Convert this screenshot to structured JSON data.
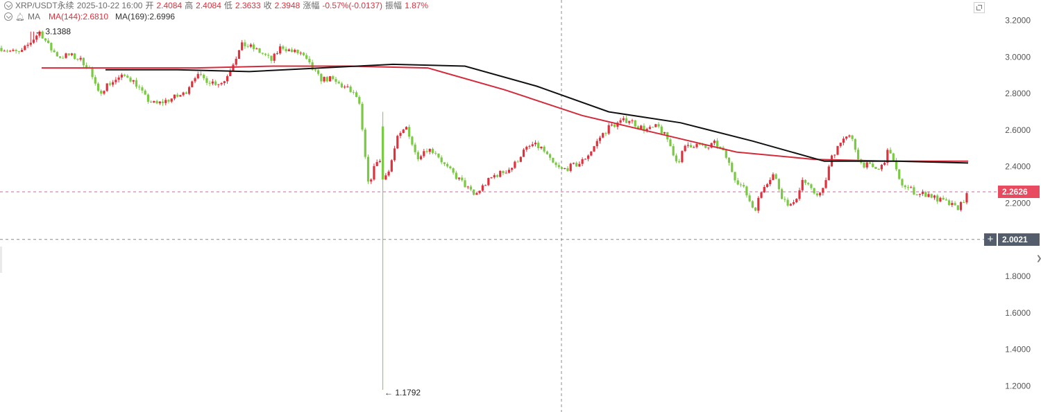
{
  "header": {
    "symbol": "XRP/USDT永续",
    "datetime": "2025-10-22 16:00",
    "open_label": "开",
    "open": "2.4084",
    "high_label": "高",
    "high": "2.4084",
    "low_label": "低",
    "low": "2.3633",
    "close_label": "收",
    "close": "2.3948",
    "change_label": "涨幅",
    "change": "-0.57%(-0.0137)",
    "amplitude_label": "振幅",
    "amplitude": "1.87%"
  },
  "indicators": {
    "name": "MA",
    "ma144": "MA(144):2.6810",
    "ma169": "MA(169):2.6996"
  },
  "price_tags": {
    "last_price": "2.2626",
    "crosshair_price": "2.0021",
    "plus": "+"
  },
  "chart_data": {
    "type": "candlestick",
    "title": "XRP/USDT永续",
    "ylim": [
      1.12,
      3.28
    ],
    "y_ticks": [
      "3.2000",
      "3.0000",
      "2.8000",
      "2.6000",
      "2.4000",
      "2.2000",
      "2.0000",
      "1.8000",
      "1.6000",
      "1.4000",
      "1.2000"
    ],
    "last_price": 2.2626,
    "crosshair_price": 2.0021,
    "annotations": [
      {
        "label": "3.1388",
        "value": 3.1388
      },
      {
        "label": "1.1792",
        "value": 1.1792
      }
    ],
    "price_path": [
      3.05,
      3.03,
      3.02,
      3.08,
      3.14,
      3.05,
      3.0,
      3.01,
      2.99,
      2.95,
      2.8,
      2.85,
      2.88,
      2.9,
      2.85,
      2.77,
      2.74,
      2.76,
      2.78,
      2.8,
      2.9,
      2.88,
      2.86,
      2.86,
      2.97,
      3.07,
      3.05,
      3.02,
      2.98,
      3.06,
      3.03,
      3.02,
      2.95,
      2.88,
      2.88,
      2.85,
      2.82,
      2.77,
      2.3,
      2.45,
      2.35,
      2.55,
      2.62,
      2.45,
      2.5,
      2.48,
      2.4,
      2.35,
      2.3,
      2.24,
      2.3,
      2.35,
      2.37,
      2.4,
      2.48,
      2.52,
      2.5,
      2.42,
      2.38,
      2.4,
      2.42,
      2.48,
      2.56,
      2.62,
      2.64,
      2.66,
      2.62,
      2.6,
      2.62,
      2.55,
      2.42,
      2.52,
      2.52,
      2.5,
      2.53,
      2.46,
      2.34,
      2.27,
      2.16,
      2.3,
      2.36,
      2.22,
      2.18,
      2.33,
      2.26,
      2.25,
      2.45,
      2.55,
      2.56,
      2.42,
      2.4,
      2.38,
      2.5,
      2.32,
      2.28,
      2.25,
      2.25,
      2.22,
      2.2,
      2.17,
      2.24
    ],
    "ma144": [
      2.94,
      2.94,
      2.94,
      2.95,
      2.95,
      2.94,
      2.82,
      2.68,
      2.58,
      2.48,
      2.44,
      2.43,
      2.43
    ],
    "ma169": [
      2.93,
      2.93,
      2.92,
      2.94,
      2.96,
      2.95,
      2.84,
      2.7,
      2.64,
      2.54,
      2.43,
      2.43,
      2.42
    ],
    "colors": {
      "up": "#e0303c",
      "down": "#7ac943",
      "ma144": "#d42a3a",
      "ma169": "#111111"
    }
  }
}
